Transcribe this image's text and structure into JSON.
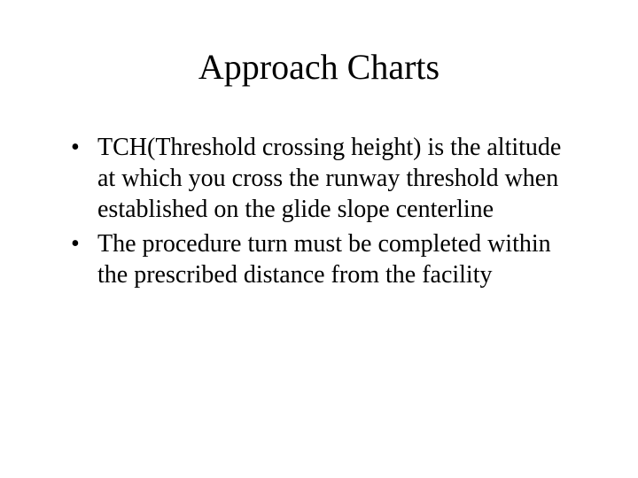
{
  "slide": {
    "title": "Approach Charts",
    "bullets": [
      "TCH(Threshold crossing height) is the altitude at which you cross the runway threshold when established on the glide slope centerline",
      "The procedure turn must be completed within the prescribed distance from the facility"
    ],
    "background_color": "#ffffff",
    "text_color": "#000000",
    "title_fontsize": 40,
    "body_fontsize": 28,
    "font_family": "Times New Roman"
  }
}
